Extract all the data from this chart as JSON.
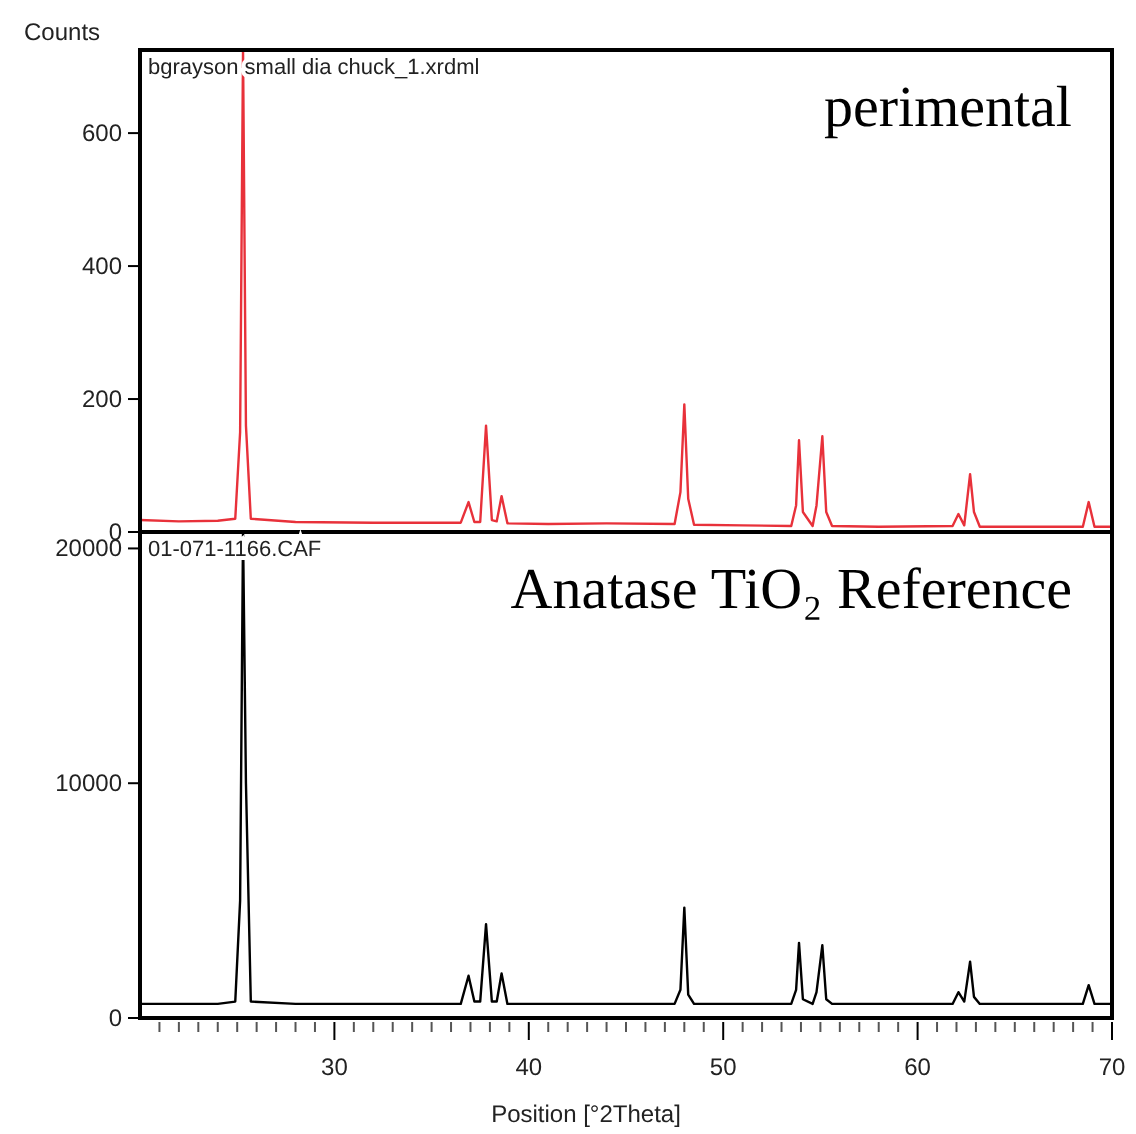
{
  "chart_data": [
    {
      "type": "line",
      "ylabel": "Counts",
      "annotations": [
        "bgrayson small dia chuck_1.xrdml",
        "perimental"
      ],
      "xlim": [
        20,
        70
      ],
      "ylim": [
        0,
        725
      ],
      "yticks": [
        0,
        200,
        400,
        600
      ],
      "tick_labels": "y",
      "x": [
        20,
        22,
        24,
        24.9,
        25.15,
        25.3,
        25.45,
        25.7,
        28,
        32,
        36.5,
        36.9,
        37.2,
        37.5,
        37.8,
        38.1,
        38.35,
        38.6,
        38.9,
        41,
        44,
        47.5,
        47.8,
        48.0,
        48.2,
        48.5,
        51,
        53.5,
        53.75,
        53.9,
        54.1,
        54.6,
        54.8,
        55.1,
        55.3,
        55.6,
        58,
        61.8,
        62.1,
        62.4,
        62.7,
        62.9,
        63.2,
        66,
        68.5,
        68.8,
        69.1,
        70
      ],
      "series": [
        {
          "color": "#e8313a",
          "values": [
            18,
            16,
            17,
            20,
            150,
            725,
            160,
            20,
            15,
            14,
            14,
            45,
            15,
            15,
            160,
            18,
            16,
            54,
            13,
            12,
            13,
            12,
            60,
            192,
            50,
            11,
            10,
            9,
            40,
            138,
            30,
            9,
            40,
            144,
            30,
            9,
            8,
            9,
            27,
            10,
            87,
            30,
            8,
            8,
            8,
            45,
            8,
            8
          ]
        }
      ]
    },
    {
      "type": "line",
      "xlabel": "Position [°2Theta]",
      "annotations": [
        "01-071-1166.CAF",
        "Anatase TiO₂ Reference"
      ],
      "xlim": [
        20,
        70
      ],
      "ylim": [
        0,
        20700
      ],
      "yticks": [
        0,
        10000,
        20000
      ],
      "xticks": [
        {
          "value": 21,
          "label": null
        },
        {
          "value": 22,
          "label": null
        },
        {
          "value": 23,
          "label": null
        },
        {
          "value": 24,
          "label": null
        },
        {
          "value": 25,
          "label": null
        },
        {
          "value": 26,
          "label": null
        },
        {
          "value": 27,
          "label": null
        },
        {
          "value": 28,
          "label": null
        },
        {
          "value": 29,
          "label": null
        },
        30,
        {
          "value": 31,
          "label": null
        },
        {
          "value": 32,
          "label": null
        },
        {
          "value": 33,
          "label": null
        },
        {
          "value": 34,
          "label": null
        },
        {
          "value": 35,
          "label": null
        },
        {
          "value": 36,
          "label": null
        },
        {
          "value": 37,
          "label": null
        },
        {
          "value": 38,
          "label": null
        },
        {
          "value": 39,
          "label": null
        },
        40,
        {
          "value": 41,
          "label": null
        },
        {
          "value": 42,
          "label": null
        },
        {
          "value": 43,
          "label": null
        },
        {
          "value": 44,
          "label": null
        },
        {
          "value": 45,
          "label": null
        },
        {
          "value": 46,
          "label": null
        },
        {
          "value": 47,
          "label": null
        },
        {
          "value": 48,
          "label": null
        },
        {
          "value": 49,
          "label": null
        },
        50,
        {
          "value": 51,
          "label": null
        },
        {
          "value": 52,
          "label": null
        },
        {
          "value": 53,
          "label": null
        },
        {
          "value": 54,
          "label": null
        },
        {
          "value": 55,
          "label": null
        },
        {
          "value": 56,
          "label": null
        },
        {
          "value": 57,
          "label": null
        },
        {
          "value": 58,
          "label": null
        },
        {
          "value": 59,
          "label": null
        },
        60,
        {
          "value": 61,
          "label": null
        },
        {
          "value": 62,
          "label": null
        },
        {
          "value": 63,
          "label": null
        },
        {
          "value": 64,
          "label": null
        },
        {
          "value": 65,
          "label": null
        },
        {
          "value": 66,
          "label": null
        },
        {
          "value": 67,
          "label": null
        },
        {
          "value": 68,
          "label": null
        },
        {
          "value": 69,
          "label": null
        },
        70
      ],
      "x": [
        20,
        22,
        24,
        24.9,
        25.15,
        25.3,
        25.45,
        25.7,
        28,
        32,
        36.5,
        36.9,
        37.2,
        37.5,
        37.8,
        38.1,
        38.35,
        38.6,
        38.9,
        41,
        44,
        47.5,
        47.8,
        48.0,
        48.2,
        48.5,
        51,
        53.5,
        53.75,
        53.9,
        54.1,
        54.6,
        54.8,
        55.1,
        55.3,
        55.6,
        58,
        61.8,
        62.1,
        62.4,
        62.7,
        62.9,
        63.2,
        66,
        68.5,
        68.8,
        69.1,
        70
      ],
      "series": [
        {
          "color": "#000000",
          "values": [
            600,
            600,
            600,
            700,
            5000,
            20700,
            10000,
            700,
            600,
            600,
            600,
            1800,
            700,
            700,
            4000,
            700,
            700,
            1900,
            600,
            600,
            600,
            600,
            1200,
            4700,
            1000,
            600,
            600,
            600,
            1200,
            3200,
            800,
            600,
            1100,
            3100,
            800,
            600,
            600,
            600,
            1100,
            700,
            2400,
            900,
            600,
            600,
            600,
            1400,
            600,
            600
          ]
        }
      ]
    }
  ]
}
